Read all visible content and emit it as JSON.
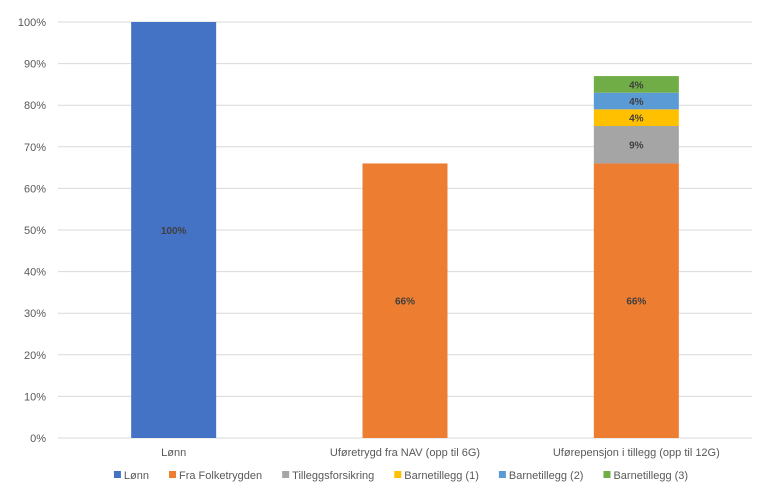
{
  "chart_data": {
    "type": "bar",
    "stacked": true,
    "title": "",
    "xlabel": "",
    "ylabel": "",
    "ylim": [
      0,
      100
    ],
    "y_ticks": [
      "0%",
      "10%",
      "20%",
      "30%",
      "40%",
      "50%",
      "60%",
      "70%",
      "80%",
      "90%",
      "100%"
    ],
    "grid": true,
    "legend_position": "bottom",
    "categories": [
      "Lønn",
      "Uføretrygd fra NAV (opp til 6G)",
      "Uførepensjon i tillegg  (opp til 12G)"
    ],
    "series": [
      {
        "name": "Lønn",
        "color": "#4472C4",
        "values": [
          100,
          0,
          0
        ],
        "labels": [
          "100%",
          "",
          ""
        ]
      },
      {
        "name": "Fra Folketrygden",
        "color": "#ED7D31",
        "values": [
          0,
          66,
          66
        ],
        "labels": [
          "",
          "66%",
          "66%"
        ]
      },
      {
        "name": "Tilleggsforsikring",
        "color": "#A5A5A5",
        "values": [
          0,
          0,
          9
        ],
        "labels": [
          "",
          "",
          "9%"
        ]
      },
      {
        "name": "Barnetillegg (1)",
        "color": "#FFC000",
        "values": [
          0,
          0,
          4
        ],
        "labels": [
          "",
          "",
          "4%"
        ]
      },
      {
        "name": "Barnetillegg (2)",
        "color": "#5B9BD5",
        "values": [
          0,
          0,
          4
        ],
        "labels": [
          "",
          "",
          "4%"
        ]
      },
      {
        "name": "Barnetillegg (3)",
        "color": "#70AD47",
        "values": [
          0,
          0,
          4
        ],
        "labels": [
          "",
          "",
          "4%"
        ]
      }
    ]
  }
}
